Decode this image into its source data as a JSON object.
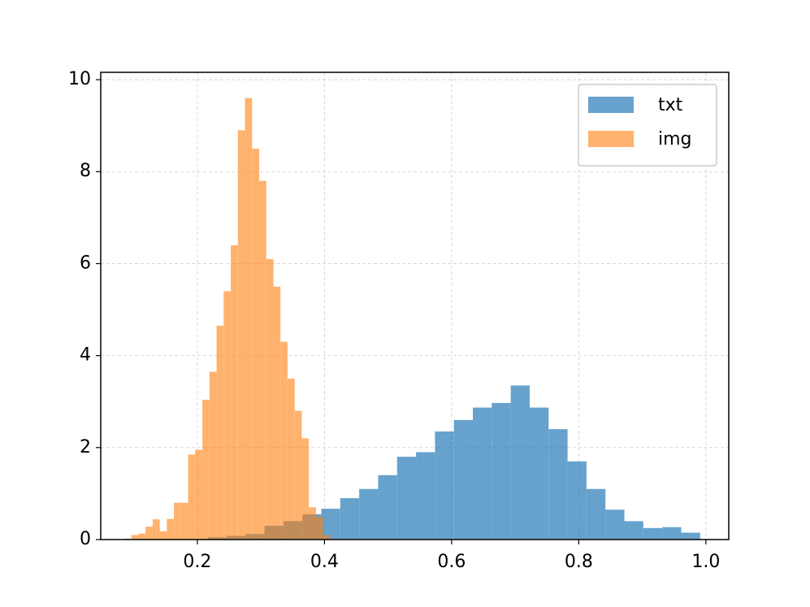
{
  "chart_data": {
    "type": "histogram",
    "series": [
      {
        "name": "txt",
        "color": "#1f77b4",
        "alpha": 0.68,
        "bins": [
          0.097,
          0.1268,
          0.1566,
          0.1864,
          0.2162,
          0.246,
          0.2758,
          0.3056,
          0.3354,
          0.3652,
          0.395,
          0.4248,
          0.4546,
          0.4844,
          0.5142,
          0.544,
          0.5738,
          0.6036,
          0.6334,
          0.6632,
          0.693,
          0.7228,
          0.7526,
          0.7824,
          0.8122,
          0.842,
          0.8718,
          0.9016,
          0.9314,
          0.9612,
          0.991
        ],
        "values": [
          0,
          0,
          0,
          0.01,
          0.05,
          0.08,
          0.12,
          0.3,
          0.4,
          0.55,
          0.67,
          0.9,
          1.1,
          1.4,
          1.8,
          1.9,
          2.35,
          2.6,
          2.87,
          2.97,
          3.35,
          2.87,
          2.4,
          1.7,
          1.1,
          0.65,
          0.4,
          0.25,
          0.27,
          0.15
        ]
      },
      {
        "name": "img",
        "color": "#ff7f0e",
        "alpha": 0.6,
        "bins": [
          0.085,
          0.0962,
          0.1073,
          0.1185,
          0.1297,
          0.1409,
          0.152,
          0.1632,
          0.1744,
          0.1855,
          0.1967,
          0.2079,
          0.219,
          0.2302,
          0.2414,
          0.2526,
          0.2637,
          0.2749,
          0.2861,
          0.2972,
          0.3084,
          0.3196,
          0.3307,
          0.3419,
          0.3531,
          0.3643,
          0.3754,
          0.3866,
          0.3978,
          0.4089,
          0.4201
        ],
        "values": [
          0.02,
          0.1,
          0.13,
          0.28,
          0.44,
          0.18,
          0.45,
          0.8,
          0.8,
          1.85,
          1.95,
          3.04,
          3.65,
          4.65,
          5.4,
          6.4,
          8.9,
          9.6,
          8.5,
          7.8,
          6.1,
          5.5,
          4.3,
          3.5,
          2.8,
          2.2,
          0.7,
          0.5,
          0.1,
          0.02
        ]
      }
    ],
    "xlim": [
      0.048,
      1.036
    ],
    "ylim": [
      0,
      10.16
    ],
    "xticks": [
      0.2,
      0.4,
      0.6,
      0.8,
      {
        "value": 1,
        "label": "1.0"
      }
    ],
    "yticks": [
      0,
      2,
      4,
      6,
      8,
      10
    ],
    "grid": true,
    "legend": "upper right"
  }
}
